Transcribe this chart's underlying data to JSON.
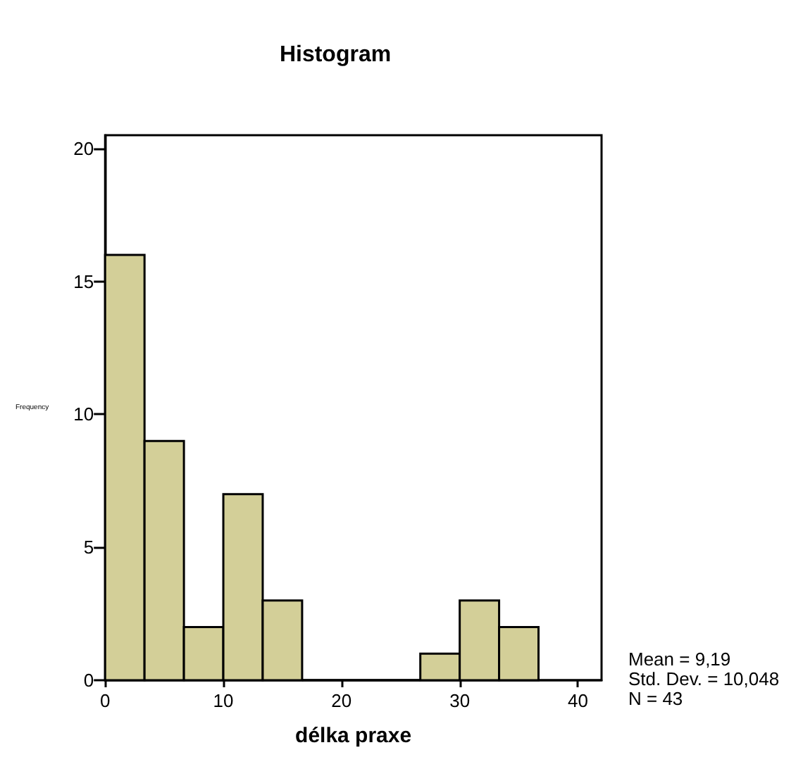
{
  "chart_data": {
    "type": "histogram",
    "title": "Histogram",
    "xlabel": "délka praxe",
    "ylabel": "Frequency",
    "bins": [
      0,
      3.333,
      6.667,
      10,
      13.333,
      16.667,
      20,
      23.333,
      26.667,
      30,
      33.333,
      36.667
    ],
    "values": [
      16,
      9,
      2,
      7,
      3,
      0,
      0,
      0,
      1,
      3,
      2
    ],
    "color": "#d3cf98",
    "xlim": [
      0,
      42
    ],
    "xticks": [
      0,
      10,
      20,
      30,
      40
    ],
    "ylim": [
      0,
      20.5
    ],
    "yticks": [
      0,
      5,
      10,
      15,
      20
    ],
    "grid": false,
    "annotations": [
      "Mean = 9,19",
      "Std. Dev. = 10,048",
      "N = 43"
    ]
  }
}
